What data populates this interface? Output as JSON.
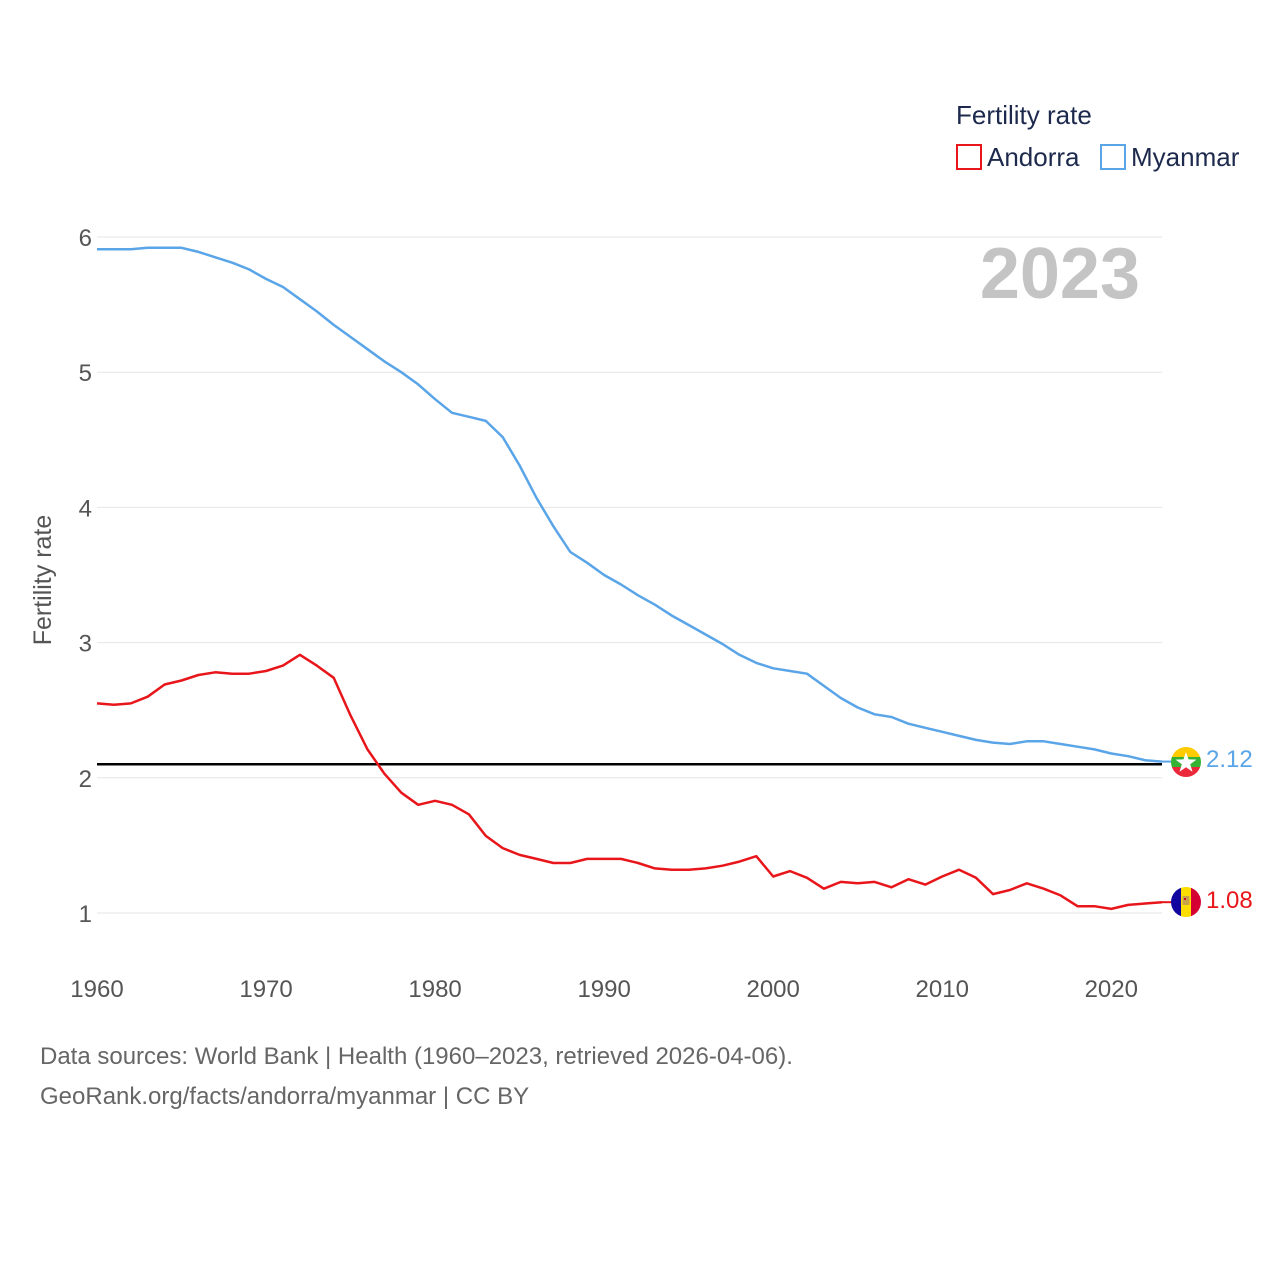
{
  "chart_data": {
    "type": "line",
    "title": "Fertility rate",
    "year_label": "2023",
    "ylabel": "Fertility rate",
    "xlabel": "",
    "xlim": [
      1960,
      2023
    ],
    "ylim": [
      0.5,
      6.2
    ],
    "x_ticks": [
      1960,
      1970,
      1980,
      1990,
      2000,
      2010,
      2020
    ],
    "y_ticks": [
      1,
      2,
      3,
      4,
      5,
      6
    ],
    "reference_line": {
      "value": 2.1,
      "color": "#000000"
    },
    "legend_placement": "top-right",
    "x": [
      1960,
      1961,
      1962,
      1963,
      1964,
      1965,
      1966,
      1967,
      1968,
      1969,
      1970,
      1971,
      1972,
      1973,
      1974,
      1975,
      1976,
      1977,
      1978,
      1979,
      1980,
      1981,
      1982,
      1983,
      1984,
      1985,
      1986,
      1987,
      1988,
      1989,
      1990,
      1991,
      1992,
      1993,
      1994,
      1995,
      1996,
      1997,
      1998,
      1999,
      2000,
      2001,
      2002,
      2003,
      2004,
      2005,
      2006,
      2007,
      2008,
      2009,
      2010,
      2011,
      2012,
      2013,
      2014,
      2015,
      2016,
      2017,
      2018,
      2019,
      2020,
      2021,
      2022,
      2023
    ],
    "series": [
      {
        "name": "Andorra",
        "color": "#e8161b",
        "end_label": "1.08",
        "values": [
          2.55,
          2.54,
          2.55,
          2.6,
          2.69,
          2.72,
          2.76,
          2.78,
          2.77,
          2.77,
          2.79,
          2.83,
          2.91,
          2.83,
          2.74,
          2.46,
          2.21,
          2.03,
          1.89,
          1.8,
          1.83,
          1.8,
          1.73,
          1.57,
          1.48,
          1.43,
          1.4,
          1.37,
          1.37,
          1.4,
          1.4,
          1.4,
          1.37,
          1.33,
          1.32,
          1.32,
          1.33,
          1.35,
          1.38,
          1.42,
          1.27,
          1.31,
          1.26,
          1.18,
          1.23,
          1.22,
          1.23,
          1.19,
          1.25,
          1.21,
          1.27,
          1.32,
          1.26,
          1.14,
          1.17,
          1.22,
          1.18,
          1.13,
          1.05,
          1.05,
          1.03,
          1.06,
          1.07,
          1.08
        ]
      },
      {
        "name": "Myanmar",
        "color": "#5aa5e8",
        "end_label": "2.12",
        "values": [
          5.91,
          5.91,
          5.91,
          5.92,
          5.92,
          5.92,
          5.89,
          5.85,
          5.81,
          5.76,
          5.69,
          5.63,
          5.54,
          5.45,
          5.35,
          5.26,
          5.17,
          5.08,
          5.0,
          4.91,
          4.8,
          4.7,
          4.67,
          4.64,
          4.52,
          4.31,
          4.07,
          3.86,
          3.67,
          3.59,
          3.5,
          3.43,
          3.35,
          3.28,
          3.2,
          3.13,
          3.06,
          2.99,
          2.91,
          2.85,
          2.81,
          2.79,
          2.77,
          2.68,
          2.59,
          2.52,
          2.47,
          2.45,
          2.4,
          2.37,
          2.34,
          2.31,
          2.28,
          2.26,
          2.25,
          2.27,
          2.27,
          2.25,
          2.23,
          2.21,
          2.18,
          2.16,
          2.13,
          2.12
        ]
      }
    ]
  },
  "footer": {
    "line1": "Data sources: World Bank | Health (1960–2023, retrieved 2026-04-06).",
    "line2": "GeoRank.org/facts/andorra/myanmar | CC BY"
  }
}
